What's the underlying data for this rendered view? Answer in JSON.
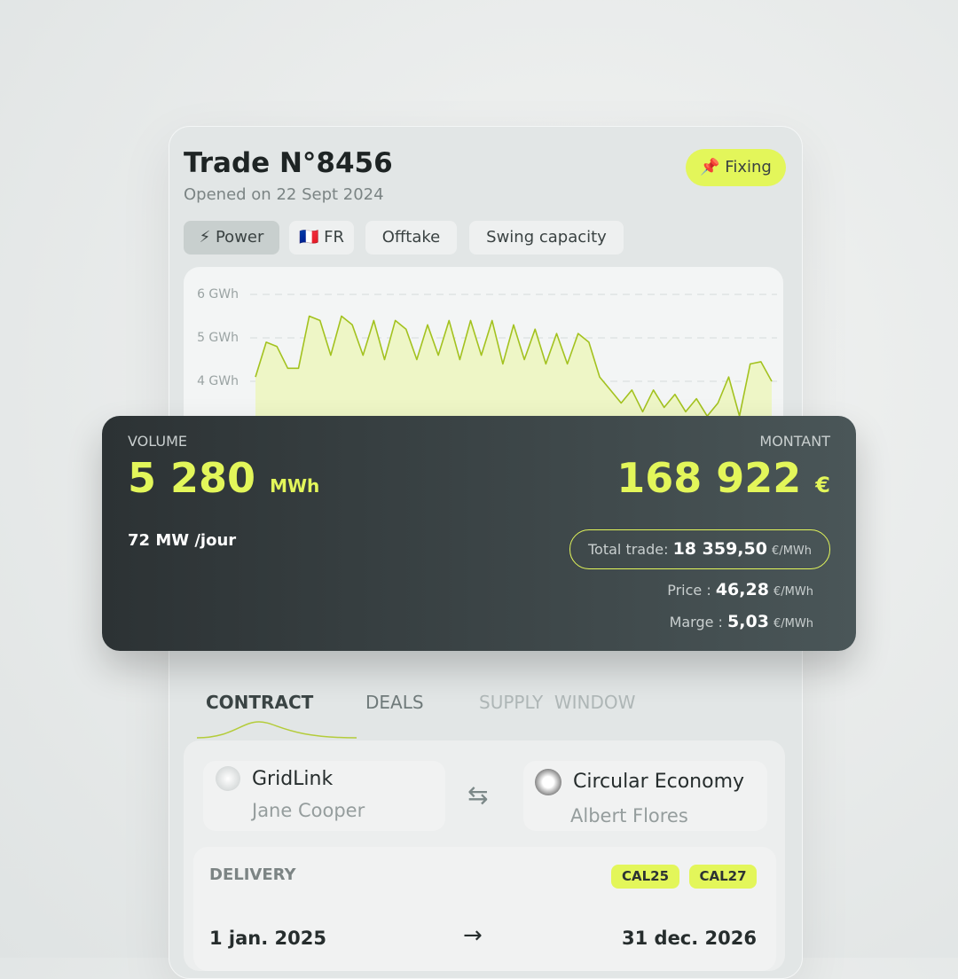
{
  "header": {
    "title": "Trade N°8456",
    "subtitle": "Opened on 22 Sept 2024",
    "status": "Fixing"
  },
  "tags": [
    "Power",
    "FR",
    "Offtake",
    "Swing capacity"
  ],
  "chart_data": {
    "type": "area",
    "color": "#a3c21f",
    "fill": "#eef6c6",
    "grid": true,
    "ylim": [
      3,
      6.5
    ],
    "yticks": [
      {
        "value": 4,
        "label": "4 GWh"
      },
      {
        "value": 5,
        "label": "5 GWh"
      },
      {
        "value": 6,
        "label": "6 GWh"
      }
    ],
    "values": [
      4.1,
      4.9,
      4.8,
      4.3,
      4.3,
      5.5,
      5.4,
      4.6,
      5.5,
      5.3,
      4.6,
      5.4,
      4.5,
      5.4,
      5.2,
      4.5,
      5.3,
      4.6,
      5.4,
      4.5,
      5.4,
      4.6,
      5.4,
      4.4,
      5.3,
      4.5,
      5.2,
      4.4,
      5.1,
      4.4,
      5.1,
      4.9,
      4.1,
      3.8,
      3.5,
      3.8,
      3.3,
      3.8,
      3.4,
      3.7,
      3.3,
      3.6,
      3.2,
      3.5,
      4.1,
      3.2,
      4.4,
      4.45,
      4.0
    ]
  },
  "summary": {
    "volume_label": "VOLUME",
    "volume": "5 280",
    "volume_unit": "MWh",
    "rate": "72 MW /jour",
    "amount_label": "MONTANT",
    "amount": "168 922",
    "amount_unit": "€",
    "total_label": "Total trade:",
    "total": "18 359,50",
    "total_unit": "€/MWh",
    "price_label": "Price :",
    "price": "46,28",
    "price_unit": "€/MWh",
    "margin_label": "Marge :",
    "margin": "5,03",
    "margin_unit": "€/MWh"
  },
  "tabs": [
    "CONTRACT",
    "DEALS",
    "SUPPLY  WINDOW"
  ],
  "parties": [
    {
      "company": "GridLink",
      "person": "Jane Cooper"
    },
    {
      "company": "Circular Economy",
      "person": "Albert Flores"
    }
  ],
  "delivery": {
    "label": "DELIVERY",
    "chips": [
      "CAL25",
      "CAL27"
    ],
    "start": "1 jan. 2025",
    "end": "31 dec. 2026"
  }
}
